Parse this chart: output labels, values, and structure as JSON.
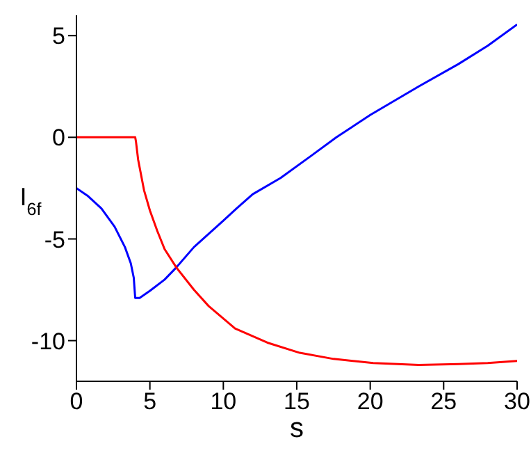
{
  "chart_data": {
    "type": "line",
    "xlabel": "s",
    "ylabel": "I$_{6f}$",
    "xlim": [
      0,
      30
    ],
    "ylim": [
      -12,
      6
    ],
    "xticks": [
      0,
      5,
      10,
      15,
      20,
      25,
      30
    ],
    "yticks": [
      -10,
      -5,
      0,
      5
    ],
    "marker": "none",
    "line_style": "solid",
    "series": [
      {
        "color": "#0000ff",
        "x": [
          0,
          0.8,
          1.7,
          2.6,
          3.3,
          3.7,
          3.9,
          4.0,
          4.3,
          5,
          6,
          6.8,
          8,
          10,
          10.9,
          12,
          13.9,
          16,
          17.7,
          20,
          23.3,
          26,
          28,
          30
        ],
        "values": [
          -2.5,
          -2.9,
          -3.5,
          -4.4,
          -5.4,
          -6.2,
          -6.9,
          -7.9,
          -7.9,
          -7.55,
          -7.0,
          -6.4,
          -5.4,
          -4.1,
          -3.5,
          -2.8,
          -2.0,
          -0.9,
          0,
          1.1,
          2.5,
          3.6,
          4.5,
          5.55
        ]
      },
      {
        "color": "#ff0000",
        "x": [
          0,
          1,
          2,
          3,
          4.0,
          4.05,
          4.2,
          4.6,
          5.0,
          5.5,
          6,
          6.8,
          8,
          9,
          10.8,
          13,
          15.2,
          17.5,
          20.2,
          23.3,
          26,
          28,
          30
        ],
        "values": [
          0,
          0,
          0,
          0,
          0,
          -0.2,
          -1.1,
          -2.6,
          -3.6,
          -4.6,
          -5.5,
          -6.4,
          -7.5,
          -8.3,
          -9.4,
          -10.1,
          -10.6,
          -10.9,
          -11.1,
          -11.2,
          -11.15,
          -11.1,
          -11.0
        ]
      }
    ]
  }
}
